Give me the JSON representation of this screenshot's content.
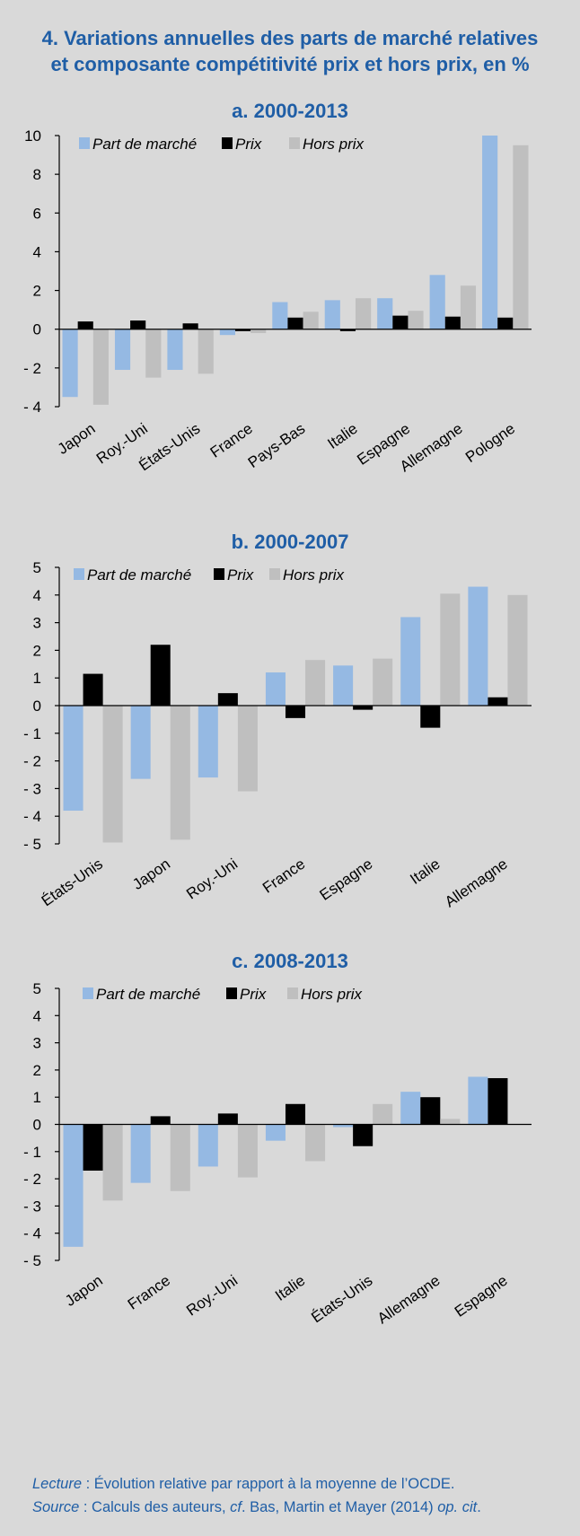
{
  "title_line1": "4. Variations annuelles des parts de marché relatives",
  "title_line2": "et composante compétitivité prix et hors prix, en %",
  "colors": {
    "part": "#95b9e3",
    "prix": "#000000",
    "hors": "#bfbfbf",
    "title": "#1f5ea6"
  },
  "footnote": {
    "lecture_label": "Lecture",
    "lecture_text": " : Évolution relative par rapport à la moyenne de l’OCDE.",
    "source_label": "Source",
    "source_text1": " : Calculs des auteurs, ",
    "source_cf": "cf",
    "source_text2": ". Bas, Martin et Mayer (2014) ",
    "source_opcit": "op. cit",
    "source_end": "."
  },
  "chart_data": [
    {
      "type": "bar",
      "title": "a. 2000-2013",
      "categories": [
        "Japon",
        "Roy.-Uni",
        "États-Unis",
        "France",
        "Pays-Bas",
        "Italie",
        "Espagne",
        "Allemagne",
        "Pologne"
      ],
      "series": [
        {
          "name": "Part de marché",
          "values": [
            -3.5,
            -2.1,
            -2.1,
            -0.3,
            1.4,
            1.5,
            1.6,
            2.8,
            10.0
          ]
        },
        {
          "name": "Prix",
          "values": [
            0.4,
            0.45,
            0.3,
            -0.1,
            0.6,
            -0.1,
            0.7,
            0.65,
            0.6
          ]
        },
        {
          "name": "Hors prix",
          "values": [
            -3.9,
            -2.5,
            -2.3,
            -0.2,
            0.9,
            1.6,
            0.95,
            2.25,
            9.5
          ]
        }
      ],
      "yticks": [
        "10",
        "8",
        "6",
        "4",
        "2",
        "0",
        "- 2",
        "- 4"
      ],
      "ylim": [
        -4,
        10
      ]
    },
    {
      "type": "bar",
      "title": "b. 2000-2007",
      "categories": [
        "États-Unis",
        "Japon",
        "Roy.-Uni",
        "France",
        "Espagne",
        "Italie",
        "Allemagne"
      ],
      "series": [
        {
          "name": "Part de marché",
          "values": [
            -3.8,
            -2.65,
            -2.6,
            1.2,
            1.45,
            3.2,
            4.3
          ]
        },
        {
          "name": "Prix",
          "values": [
            1.15,
            2.2,
            0.45,
            -0.45,
            -0.15,
            -0.8,
            0.3
          ]
        },
        {
          "name": "Hors prix",
          "values": [
            -4.95,
            -4.85,
            -3.1,
            1.65,
            1.7,
            4.05,
            4.0
          ]
        }
      ],
      "yticks": [
        "5",
        "4",
        "3",
        "2",
        "1",
        "0",
        "- 1",
        "- 2",
        "- 3",
        "- 4",
        "- 5"
      ],
      "ylim": [
        -5,
        5
      ]
    },
    {
      "type": "bar",
      "title": "c. 2008-2013",
      "categories": [
        "Japon",
        "France",
        "Roy.-Uni",
        "Italie",
        "États-Unis",
        "Allemagne",
        "Espagne"
      ],
      "series": [
        {
          "name": "Part de marché",
          "values": [
            -4.5,
            -2.15,
            -1.55,
            -0.6,
            -0.1,
            1.2,
            1.75
          ]
        },
        {
          "name": "Prix",
          "values": [
            -1.7,
            0.3,
            0.4,
            0.75,
            -0.8,
            1.0,
            1.7
          ]
        },
        {
          "name": "Hors prix",
          "values": [
            -2.8,
            -2.45,
            -1.95,
            -1.35,
            0.75,
            0.2,
            0.0
          ]
        }
      ],
      "yticks": [
        "5",
        "4",
        "3",
        "2",
        "1",
        "0",
        "- 1",
        "- 2",
        "- 3",
        "- 4",
        "- 5"
      ],
      "ylim": [
        -5,
        5
      ]
    }
  ]
}
